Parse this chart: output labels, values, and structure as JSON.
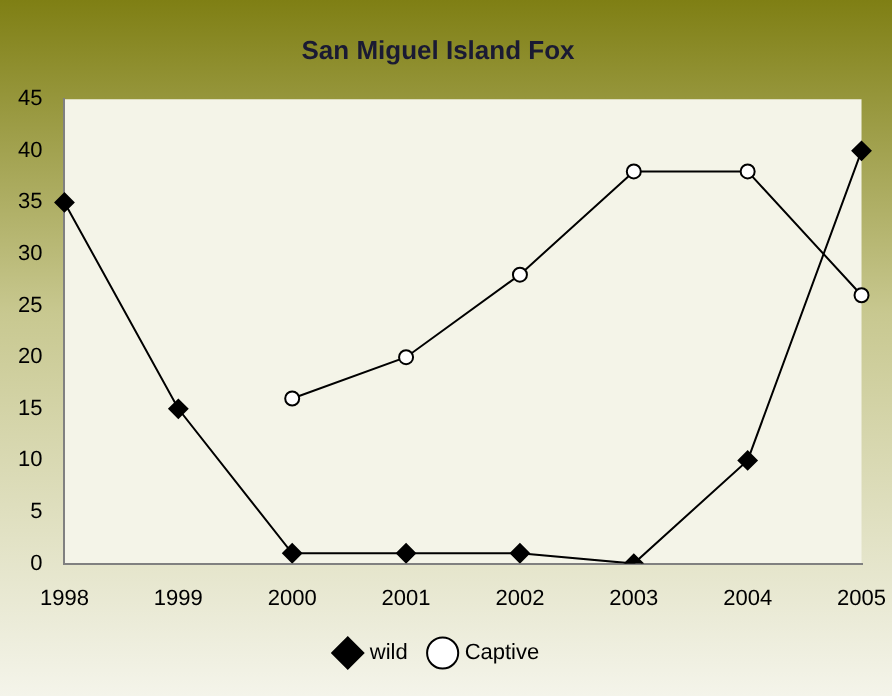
{
  "chart_data": {
    "type": "line",
    "title": "San Miguel Island Fox",
    "categories": [
      "1998",
      "1999",
      "2000",
      "2001",
      "2002",
      "2003",
      "2004",
      "2005"
    ],
    "series": [
      {
        "name": "wild",
        "color": "#000000",
        "marker": "diamond",
        "values": [
          35,
          15,
          1,
          1,
          1,
          0,
          10,
          40
        ]
      },
      {
        "name": "Captive",
        "color": "#000000",
        "marker": "circle",
        "values": [
          null,
          null,
          16,
          20,
          28,
          38,
          38,
          26
        ]
      }
    ],
    "ylim": [
      0,
      45
    ],
    "yticks": [
      0,
      5,
      10,
      15,
      20,
      25,
      30,
      35,
      40,
      45
    ],
    "legend": "bottom"
  }
}
